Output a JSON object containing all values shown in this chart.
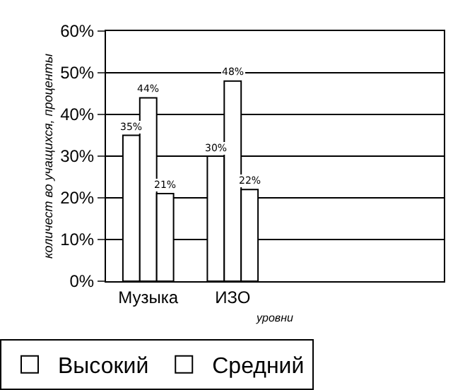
{
  "chart_data": {
    "type": "bar",
    "xlabel": "уровни",
    "ylabel": "количест во учащихся, проценты",
    "categories": [
      "Музыка",
      "ИЗО",
      null,
      null
    ],
    "series": [
      {
        "name": "Высокий",
        "color": "#ffffff",
        "values": [
          35,
          30,
          null,
          null
        ]
      },
      {
        "name": "Средний",
        "color": "#ffffff",
        "values": [
          44,
          48,
          null,
          null
        ]
      },
      {
        "color": "#ffffff",
        "values": [
          21,
          22,
          null,
          null
        ]
      }
    ],
    "ylim": [
      0,
      60
    ],
    "yticks": [
      {
        "value": 0,
        "label": "0%"
      },
      {
        "value": 10,
        "label": "10%"
      },
      {
        "value": 20,
        "label": "20%"
      },
      {
        "value": 30,
        "label": "30%"
      },
      {
        "value": 40,
        "label": "40%"
      },
      {
        "value": 50,
        "label": "50%"
      },
      {
        "value": 60,
        "label": "60%"
      }
    ],
    "value_labels": [
      [
        "35%",
        "30%",
        null,
        null
      ],
      [
        "44%",
        "48%",
        null,
        null
      ],
      [
        "21%",
        "22%",
        null,
        null
      ]
    ],
    "grid": "y",
    "legend": "bottom"
  }
}
